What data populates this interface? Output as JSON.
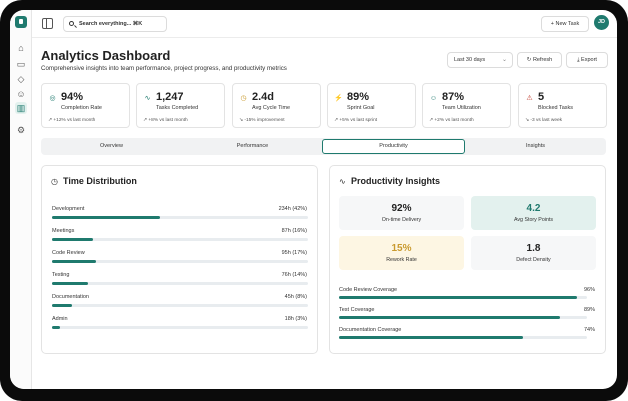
{
  "header": {
    "search_placeholder": "Search everything... ⌘K",
    "new_task_label": "+ New Task",
    "avatar_initials": "JD"
  },
  "page": {
    "title": "Analytics Dashboard",
    "subtitle": "Comprehensive insights into team performance, project progress, and productivity metrics",
    "date_range": "Last 30 days",
    "refresh_label": "Refresh",
    "export_label": "Export"
  },
  "stats": [
    {
      "icon": "target-icon",
      "value": "94%",
      "label": "Completion Rate",
      "change": "↗ +12% vs last month",
      "color": "#1f7a6e"
    },
    {
      "icon": "activity-icon",
      "value": "1,247",
      "label": "Tasks Completed",
      "change": "↗ +8% vs last month",
      "color": "#1f7a6e"
    },
    {
      "icon": "clock-icon",
      "value": "2.4d",
      "label": "Avg Cycle Time",
      "change": "↘ -15% improvement",
      "color": "#c99a2e"
    },
    {
      "icon": "zap-icon",
      "value": "89%",
      "label": "Sprint Goal",
      "change": "↗ +5% vs last sprint",
      "color": "#1f7a6e"
    },
    {
      "icon": "users-icon",
      "value": "87%",
      "label": "Team Utilization",
      "change": "↗ +2% vs last month",
      "color": "#1f7a6e"
    },
    {
      "icon": "alert-icon",
      "value": "5",
      "label": "Blocked Tasks",
      "change": "↘ -3 vs last week",
      "color": "#c0392b"
    }
  ],
  "tabs": [
    "Overview",
    "Performance",
    "Productivity",
    "Insights"
  ],
  "active_tab": "Productivity",
  "time_distribution": {
    "title": "Time Distribution",
    "rows": [
      {
        "label": "Development",
        "value": "234h (42%)",
        "fraction": 0.42
      },
      {
        "label": "Meetings",
        "value": "87h (16%)",
        "fraction": 0.16
      },
      {
        "label": "Code Review",
        "value": "95h (17%)",
        "fraction": 0.17
      },
      {
        "label": "Testing",
        "value": "76h (14%)",
        "fraction": 0.14
      },
      {
        "label": "Documentation",
        "value": "45h (8%)",
        "fraction": 0.08
      },
      {
        "label": "Admin",
        "value": "18h (3%)",
        "fraction": 0.03
      }
    ]
  },
  "productivity_insights": {
    "title": "Productivity Insights",
    "tiles": [
      {
        "value": "92%",
        "label": "On-time Delivery",
        "bg": "#f6f7f8",
        "color": "#222222"
      },
      {
        "value": "4.2",
        "label": "Avg Story Points",
        "bg": "#e3f1ee",
        "color": "#1f7a6e"
      },
      {
        "value": "15%",
        "label": "Rework Rate",
        "bg": "#fdf6e3",
        "color": "#c99a2e"
      },
      {
        "value": "1.8",
        "label": "Defect Density",
        "bg": "#f6f7f8",
        "color": "#222222"
      }
    ],
    "coverage": [
      {
        "label": "Code Review Coverage",
        "value": "96%",
        "fraction": 0.96
      },
      {
        "label": "Test Coverage",
        "value": "89%",
        "fraction": 0.89
      },
      {
        "label": "Documentation Coverage",
        "value": "74%",
        "fraction": 0.74
      }
    ]
  },
  "colors": {
    "accent": "#1f7a6e",
    "warning": "#c99a2e",
    "danger": "#c0392b"
  }
}
